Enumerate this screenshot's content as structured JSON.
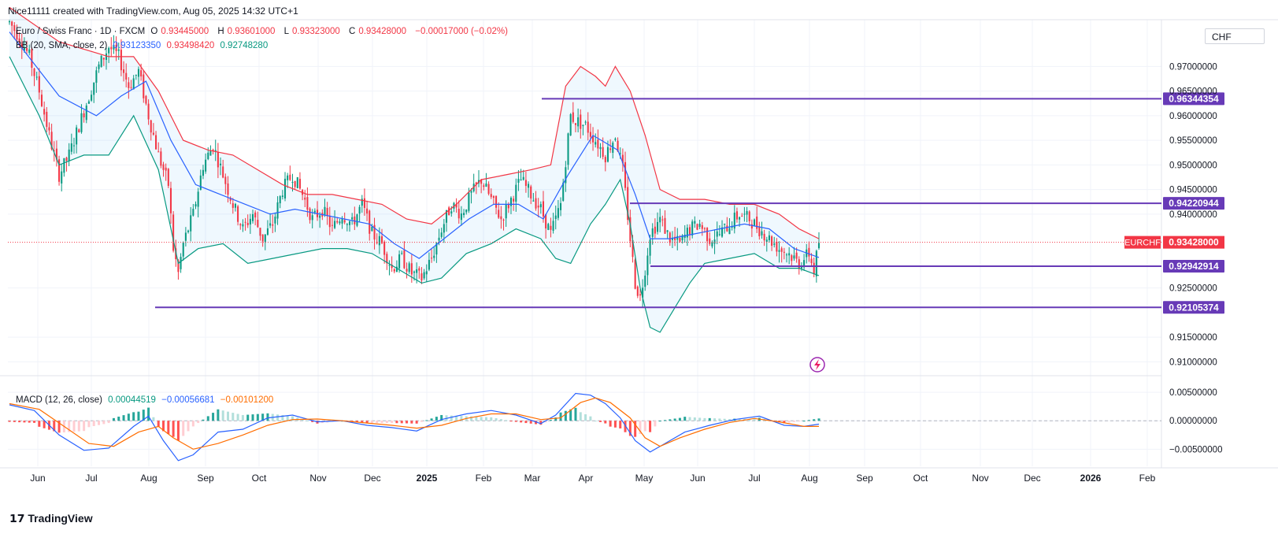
{
  "header": {
    "credit": "Nice11111 created with TradingView.com, Aug 05, 2025 14:32 UTC+1",
    "symbol_desc": "Euro / Swiss Franc · 1D · FXCM",
    "ohlc": {
      "o_label": "O",
      "o": "0.93445000",
      "h_label": "H",
      "h": "0.93601000",
      "l_label": "L",
      "l": "0.93323000",
      "c_label": "C",
      "c": "0.93428000",
      "change": "−0.00017000 (−0.02%)"
    },
    "bb": {
      "label": "BB (20, SMA, close, 2)",
      "mid": "0.93123350",
      "upper": "0.93498420",
      "lower": "0.92748280"
    },
    "macd": {
      "label": "MACD (12, 26, close)",
      "hist": "0.00044519",
      "macd": "−0.00056681",
      "signal": "−0.00101200"
    },
    "currency": "CHF"
  },
  "brand": "TradingView",
  "colors": {
    "up": "#089981",
    "down": "#f23645",
    "bb_mid": "#2962ff",
    "bb_up": "#f23645",
    "bb_lo": "#089981",
    "macd": "#2962ff",
    "signal": "#ff6d00",
    "level": "#673ab7",
    "grid": "#f0f3fa"
  },
  "chart_data": {
    "type": "candlestick",
    "price_axis": {
      "range": [
        0.9075,
        0.9795
      ],
      "ticks": [
        "0.91000000",
        "0.91500000",
        "0.92500000",
        "0.94000000",
        "0.94500000",
        "0.95000000",
        "0.95500000",
        "0.96000000",
        "0.96500000",
        "0.97000000"
      ]
    },
    "macd_axis": {
      "range": [
        -0.008,
        0.0075
      ],
      "ticks": [
        "0.00500000",
        "0.00000000",
        "−0.00500000"
      ]
    },
    "time_axis": [
      "Jun",
      "Jul",
      "Aug",
      "Sep",
      "Oct",
      "Nov",
      "Dec",
      "2025",
      "Feb",
      "Mar",
      "Apr",
      "May",
      "Jun",
      "Jul",
      "Aug",
      "Sep",
      "Oct",
      "Nov",
      "Dec",
      "2026",
      "Feb"
    ],
    "levels": [
      {
        "value": 0.96344354,
        "label": "0.96344354",
        "start": "Mar"
      },
      {
        "value": 0.94220944,
        "label": "0.94220944",
        "start": "Apr"
      },
      {
        "value": 0.92942914,
        "label": "0.92942914",
        "start": "May"
      },
      {
        "value": 0.92105374,
        "label": "0.92105374",
        "start": "Aug"
      }
    ],
    "last_price": {
      "symbol": "EURCHF",
      "value": 0.93428,
      "label": "0.93428000"
    },
    "price_path": [
      [
        0,
        0.979
      ],
      [
        4,
        0.976
      ],
      [
        8,
        0.972
      ],
      [
        12,
        0.965
      ],
      [
        16,
        0.956
      ],
      [
        20,
        0.948
      ],
      [
        24,
        0.952
      ],
      [
        28,
        0.958
      ],
      [
        32,
        0.964
      ],
      [
        36,
        0.97
      ],
      [
        40,
        0.974
      ],
      [
        44,
        0.972
      ],
      [
        48,
        0.966
      ],
      [
        52,
        0.969
      ],
      [
        56,
        0.96
      ],
      [
        60,
        0.952
      ],
      [
        64,
        0.946
      ],
      [
        66,
        0.933
      ],
      [
        68,
        0.928
      ],
      [
        70,
        0.934
      ],
      [
        74,
        0.94
      ],
      [
        78,
        0.95
      ],
      [
        82,
        0.954
      ],
      [
        86,
        0.948
      ],
      [
        90,
        0.942
      ],
      [
        94,
        0.937
      ],
      [
        98,
        0.94
      ],
      [
        102,
        0.935
      ],
      [
        106,
        0.938
      ],
      [
        110,
        0.945
      ],
      [
        114,
        0.948
      ],
      [
        118,
        0.944
      ],
      [
        122,
        0.939
      ],
      [
        126,
        0.941
      ],
      [
        130,
        0.937
      ],
      [
        134,
        0.94
      ],
      [
        138,
        0.938
      ],
      [
        142,
        0.942
      ],
      [
        146,
        0.936
      ],
      [
        150,
        0.934
      ],
      [
        154,
        0.929
      ],
      [
        158,
        0.931
      ],
      [
        162,
        0.928
      ],
      [
        166,
        0.927
      ],
      [
        170,
        0.931
      ],
      [
        174,
        0.937
      ],
      [
        178,
        0.942
      ],
      [
        182,
        0.94
      ],
      [
        186,
        0.944
      ],
      [
        190,
        0.947
      ],
      [
        194,
        0.943
      ],
      [
        198,
        0.939
      ],
      [
        202,
        0.943
      ],
      [
        206,
        0.947
      ],
      [
        210,
        0.944
      ],
      [
        214,
        0.941
      ],
      [
        218,
        0.936
      ],
      [
        222,
        0.942
      ],
      [
        224,
        0.951
      ],
      [
        226,
        0.96
      ],
      [
        228,
        0.959
      ],
      [
        232,
        0.958
      ],
      [
        236,
        0.955
      ],
      [
        240,
        0.952
      ],
      [
        244,
        0.956
      ],
      [
        247,
        0.949
      ],
      [
        250,
        0.935
      ],
      [
        252,
        0.926
      ],
      [
        254,
        0.923
      ],
      [
        256,
        0.929
      ],
      [
        258,
        0.936
      ],
      [
        262,
        0.939
      ],
      [
        266,
        0.935
      ],
      [
        270,
        0.934
      ],
      [
        274,
        0.937
      ],
      [
        278,
        0.938
      ],
      [
        282,
        0.935
      ],
      [
        286,
        0.936
      ],
      [
        290,
        0.938
      ],
      [
        294,
        0.94
      ],
      [
        298,
        0.939
      ],
      [
        302,
        0.937
      ],
      [
        306,
        0.935
      ],
      [
        310,
        0.933
      ],
      [
        314,
        0.932
      ],
      [
        318,
        0.93
      ],
      [
        322,
        0.932
      ],
      [
        324,
        0.9285
      ],
      [
        326,
        0.9343
      ]
    ],
    "bb_upper": [
      [
        0,
        0.982
      ],
      [
        20,
        0.975
      ],
      [
        40,
        0.972
      ],
      [
        50,
        0.972
      ],
      [
        60,
        0.965
      ],
      [
        70,
        0.955
      ],
      [
        80,
        0.953
      ],
      [
        90,
        0.952
      ],
      [
        100,
        0.949
      ],
      [
        110,
        0.946
      ],
      [
        120,
        0.944
      ],
      [
        130,
        0.944
      ],
      [
        140,
        0.943
      ],
      [
        150,
        0.942
      ],
      [
        160,
        0.939
      ],
      [
        170,
        0.938
      ],
      [
        180,
        0.942
      ],
      [
        190,
        0.947
      ],
      [
        200,
        0.948
      ],
      [
        210,
        0.949
      ],
      [
        218,
        0.95
      ],
      [
        224,
        0.966
      ],
      [
        230,
        0.97
      ],
      [
        236,
        0.968
      ],
      [
        240,
        0.966
      ],
      [
        244,
        0.97
      ],
      [
        250,
        0.965
      ],
      [
        256,
        0.956
      ],
      [
        262,
        0.945
      ],
      [
        270,
        0.943
      ],
      [
        280,
        0.943
      ],
      [
        290,
        0.942
      ],
      [
        300,
        0.942
      ],
      [
        310,
        0.94
      ],
      [
        318,
        0.937
      ],
      [
        326,
        0.935
      ]
    ],
    "bb_mid": [
      [
        0,
        0.977
      ],
      [
        20,
        0.964
      ],
      [
        35,
        0.96
      ],
      [
        45,
        0.964
      ],
      [
        55,
        0.967
      ],
      [
        65,
        0.955
      ],
      [
        75,
        0.946
      ],
      [
        85,
        0.944
      ],
      [
        95,
        0.942
      ],
      [
        105,
        0.94
      ],
      [
        115,
        0.941
      ],
      [
        125,
        0.94
      ],
      [
        135,
        0.939
      ],
      [
        145,
        0.938
      ],
      [
        155,
        0.934
      ],
      [
        165,
        0.931
      ],
      [
        175,
        0.935
      ],
      [
        185,
        0.939
      ],
      [
        195,
        0.942
      ],
      [
        205,
        0.942
      ],
      [
        215,
        0.939
      ],
      [
        225,
        0.948
      ],
      [
        235,
        0.956
      ],
      [
        245,
        0.953
      ],
      [
        252,
        0.944
      ],
      [
        258,
        0.935
      ],
      [
        266,
        0.935
      ],
      [
        276,
        0.936
      ],
      [
        286,
        0.937
      ],
      [
        296,
        0.938
      ],
      [
        306,
        0.937
      ],
      [
        316,
        0.933
      ],
      [
        326,
        0.9312
      ]
    ],
    "bb_lower": [
      [
        0,
        0.972
      ],
      [
        12,
        0.96
      ],
      [
        20,
        0.95
      ],
      [
        30,
        0.952
      ],
      [
        40,
        0.952
      ],
      [
        50,
        0.96
      ],
      [
        60,
        0.949
      ],
      [
        68,
        0.93
      ],
      [
        76,
        0.933
      ],
      [
        86,
        0.934
      ],
      [
        96,
        0.93
      ],
      [
        106,
        0.931
      ],
      [
        116,
        0.932
      ],
      [
        126,
        0.933
      ],
      [
        136,
        0.933
      ],
      [
        146,
        0.932
      ],
      [
        156,
        0.929
      ],
      [
        166,
        0.926
      ],
      [
        174,
        0.927
      ],
      [
        184,
        0.932
      ],
      [
        194,
        0.934
      ],
      [
        204,
        0.937
      ],
      [
        214,
        0.935
      ],
      [
        220,
        0.931
      ],
      [
        226,
        0.93
      ],
      [
        234,
        0.938
      ],
      [
        240,
        0.942
      ],
      [
        246,
        0.947
      ],
      [
        250,
        0.938
      ],
      [
        254,
        0.925
      ],
      [
        258,
        0.917
      ],
      [
        262,
        0.916
      ],
      [
        268,
        0.921
      ],
      [
        274,
        0.926
      ],
      [
        280,
        0.93
      ],
      [
        290,
        0.931
      ],
      [
        300,
        0.932
      ],
      [
        310,
        0.929
      ],
      [
        318,
        0.929
      ],
      [
        326,
        0.9275
      ]
    ],
    "macd_line": [
      [
        0,
        0.0028
      ],
      [
        10,
        0.0018
      ],
      [
        20,
        -0.0025
      ],
      [
        30,
        -0.0052
      ],
      [
        40,
        -0.0048
      ],
      [
        50,
        -0.001
      ],
      [
        56,
        0.0008
      ],
      [
        62,
        -0.0035
      ],
      [
        68,
        -0.007
      ],
      [
        74,
        -0.006
      ],
      [
        84,
        -0.002
      ],
      [
        94,
        -0.0015
      ],
      [
        104,
        0.0005
      ],
      [
        114,
        0.001
      ],
      [
        124,
        -0.0002
      ],
      [
        134,
        0.0
      ],
      [
        144,
        -0.0008
      ],
      [
        154,
        -0.0012
      ],
      [
        164,
        -0.0018
      ],
      [
        174,
        0.0002
      ],
      [
        184,
        0.0012
      ],
      [
        194,
        0.0018
      ],
      [
        204,
        0.001
      ],
      [
        214,
        -0.0005
      ],
      [
        220,
        0.001
      ],
      [
        228,
        0.0048
      ],
      [
        234,
        0.0045
      ],
      [
        240,
        0.003
      ],
      [
        246,
        0.0005
      ],
      [
        252,
        -0.0035
      ],
      [
        258,
        -0.0055
      ],
      [
        264,
        -0.004
      ],
      [
        272,
        -0.002
      ],
      [
        282,
        -0.0008
      ],
      [
        292,
        0.0002
      ],
      [
        302,
        0.0008
      ],
      [
        312,
        -0.0008
      ],
      [
        320,
        -0.001
      ],
      [
        326,
        -0.0006
      ]
    ],
    "signal_line": [
      [
        0,
        0.003
      ],
      [
        12,
        0.002
      ],
      [
        22,
        -0.001
      ],
      [
        32,
        -0.004
      ],
      [
        42,
        -0.0045
      ],
      [
        52,
        -0.002
      ],
      [
        60,
        -0.001
      ],
      [
        66,
        -0.003
      ],
      [
        74,
        -0.005
      ],
      [
        84,
        -0.004
      ],
      [
        94,
        -0.0025
      ],
      [
        104,
        -0.0008
      ],
      [
        114,
        0.0002
      ],
      [
        124,
        0.0003
      ],
      [
        134,
        0.0
      ],
      [
        144,
        -0.0004
      ],
      [
        154,
        -0.0008
      ],
      [
        164,
        -0.0013
      ],
      [
        174,
        -0.0008
      ],
      [
        184,
        0.0004
      ],
      [
        194,
        0.0012
      ],
      [
        204,
        0.0012
      ],
      [
        214,
        0.0002
      ],
      [
        222,
        0.0005
      ],
      [
        230,
        0.0032
      ],
      [
        236,
        0.004
      ],
      [
        242,
        0.0032
      ],
      [
        250,
        0.0005
      ],
      [
        256,
        -0.003
      ],
      [
        262,
        -0.0045
      ],
      [
        270,
        -0.003
      ],
      [
        280,
        -0.0015
      ],
      [
        290,
        -0.0003
      ],
      [
        300,
        0.0004
      ],
      [
        310,
        -0.0002
      ],
      [
        320,
        -0.001
      ],
      [
        326,
        -0.001
      ]
    ],
    "sample_count": 327
  }
}
